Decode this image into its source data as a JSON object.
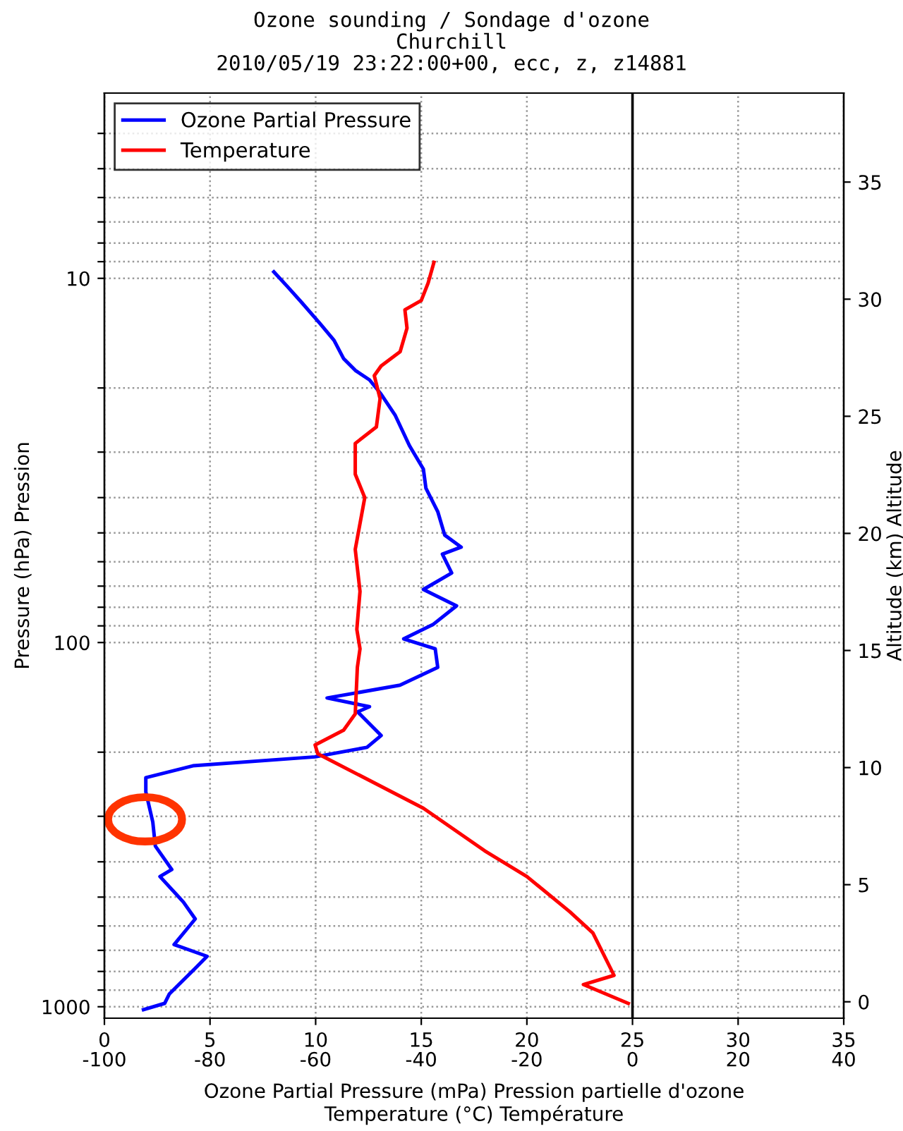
{
  "chart_data": {
    "type": "line",
    "title": "Ozone sounding / Sondage d'ozone\nChurchill\n2010/05/19 23:22:00+00, ecc, z, z14881",
    "xlabel": "Ozone Partial Pressure (mPa) Pression partielle d'ozone",
    "x2label": "Temperature (°C) Température",
    "ylabel": "Pressure (hPa) Pression",
    "y2label": "Altitude (km) Altitude",
    "log": "y",
    "grid": true,
    "legend": "top left",
    "line_style": "solid",
    "marker": "none",
    "xlim": [
      0,
      35
    ],
    "xticks": [
      0,
      5,
      10,
      15,
      20,
      25,
      30,
      35
    ],
    "x2lim": [
      -100,
      40
    ],
    "x2ticks": [
      -100,
      -80,
      -60,
      -40,
      -20,
      0,
      20,
      40
    ],
    "ylim": [
      1075,
      3.1
    ],
    "yticks": [
      {
        "value": 4,
        "label": null
      },
      {
        "value": 5,
        "label": null
      },
      {
        "value": 6,
        "label": null
      },
      {
        "value": 7,
        "label": null
      },
      {
        "value": 8,
        "label": null
      },
      {
        "value": 9,
        "label": null
      },
      10,
      {
        "value": 20,
        "label": null
      },
      {
        "value": 30,
        "label": null
      },
      {
        "value": 40,
        "label": null
      },
      {
        "value": 50,
        "label": null
      },
      {
        "value": 60,
        "label": null
      },
      {
        "value": 70,
        "label": null
      },
      {
        "value": 80,
        "label": null
      },
      {
        "value": 90,
        "label": null
      },
      100,
      {
        "value": 200,
        "label": null
      },
      {
        "value": 300,
        "label": null
      },
      {
        "value": 400,
        "label": null
      },
      {
        "value": 500,
        "label": null
      },
      {
        "value": 600,
        "label": null
      },
      {
        "value": 700,
        "label": null
      },
      {
        "value": 800,
        "label": null
      },
      {
        "value": 900,
        "label": null
      },
      1000
    ],
    "y2lim": [
      -0.7,
      38.8
    ],
    "y2ticks": [
      0,
      5,
      10,
      15,
      20,
      25,
      30,
      35
    ],
    "ref_lines": [
      {
        "axis": "x",
        "value": 25,
        "color": "#000000",
        "line_style": "solid"
      }
    ],
    "series": [
      {
        "name": "Ozone Partial Pressure",
        "color": "#0000ff",
        "x": [
          8.02,
          8.64,
          9.31,
          10.2,
          10.87,
          11.32,
          11.88,
          12.55,
          13.1,
          13.77,
          14.44,
          15.1,
          15.22,
          15.78,
          16.11,
          16.89,
          16.0,
          16.44,
          15.1,
          16.67,
          15.55,
          14.17,
          15.66,
          15.78,
          13.99,
          10.54,
          12.55,
          11.99,
          13.1,
          12.43,
          9.98,
          4.19,
          1.96,
          1.96,
          2.29,
          2.41,
          3.19,
          2.63,
          3.74,
          4.3,
          3.3,
          4.86,
          4.3,
          3.07,
          2.85,
          1.85
        ],
        "values": [
          9.6,
          10.5,
          11.6,
          13.3,
          14.8,
          16.6,
          17.9,
          19.0,
          20.8,
          23.8,
          28.8,
          33.4,
          37.7,
          43.7,
          50.7,
          54.7,
          57.2,
          64.4,
          71.5,
          79.3,
          89.3,
          97.7,
          104,
          117,
          131,
          142,
          150,
          155,
          180,
          194,
          206,
          218,
          235,
          257,
          311,
          362,
          420,
          439,
          516,
          574,
          675,
          727,
          784,
          923,
          979,
          1019
        ]
      },
      {
        "name": "Temperature",
        "color": "#ff0000",
        "axis": "x2",
        "x": [
          -37.6,
          -38.7,
          -40.0,
          -43.1,
          -42.7,
          -44.0,
          -47.6,
          -48.9,
          -47.8,
          -48.5,
          -52.5,
          -52.5,
          -50.7,
          -52.5,
          -51.6,
          -52.2,
          -51.6,
          -52.1,
          -52.5,
          -54.7,
          -60.1,
          -59.6,
          -39.6,
          -28.0,
          -20.0,
          -11.9,
          -7.5,
          -3.5,
          -9.3,
          -0.8
        ],
        "values": [
          9.04,
          10.3,
          11.5,
          12.2,
          13.7,
          15.9,
          17.4,
          18.5,
          21.4,
          25.6,
          28.4,
          34.5,
          40.0,
          55.5,
          72.4,
          92,
          104,
          117,
          157,
          174,
          191,
          202,
          285,
          373,
          439,
          548,
          627,
          820,
          869,
          979
        ]
      }
    ]
  }
}
